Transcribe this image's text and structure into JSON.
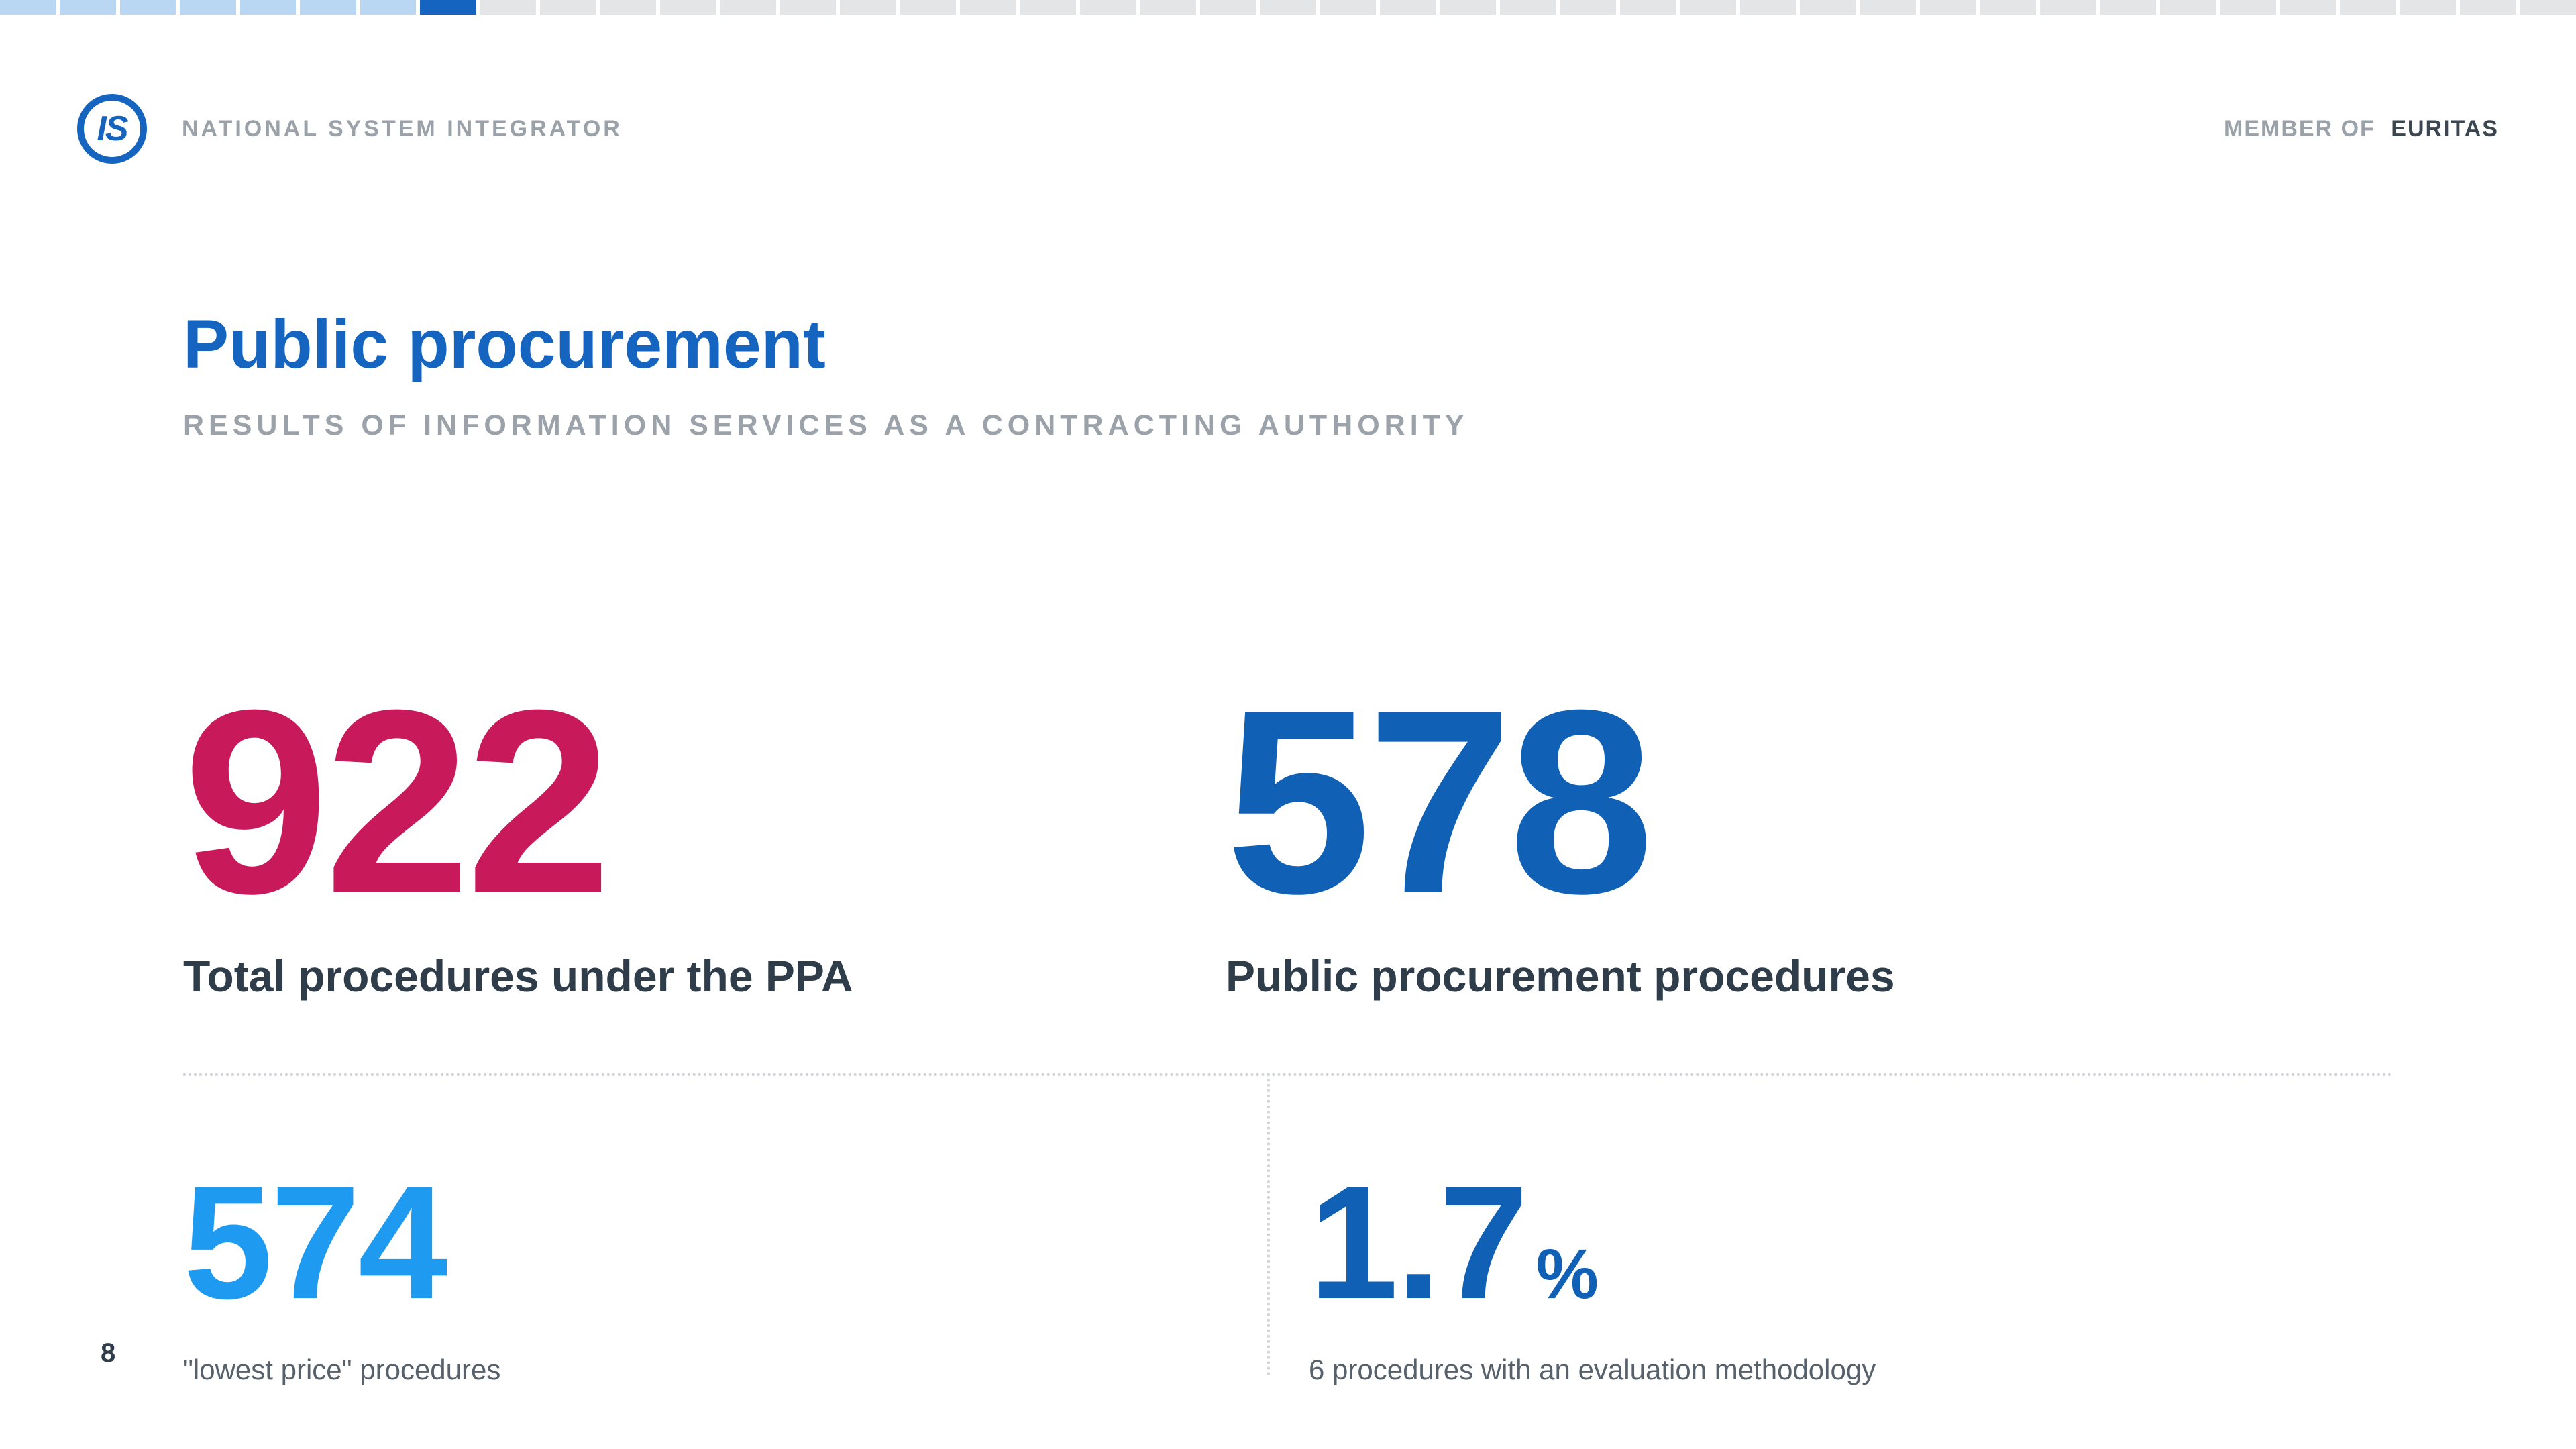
{
  "page": {
    "background": "#ffffff",
    "page_number": "8"
  },
  "progress_bar": {
    "total_segments": 43,
    "completed_segments": 7,
    "current_segment_index": 8,
    "colors": {
      "completed": "#b9d7f2",
      "current": "#1565c0",
      "upcoming": "#e4e5e6"
    }
  },
  "header": {
    "logo_text": "IS",
    "company": "NATIONAL SYSTEM INTEGRATOR",
    "membership_prefix": "MEMBER OF",
    "membership_org": "EURITAS"
  },
  "title_block": {
    "title": "Public procurement",
    "subtitle": "RESULTS OF INFORMATION SERVICES AS A CONTRACTING AUTHORITY"
  },
  "stats": [
    {
      "value": "922",
      "suffix": "",
      "label": "Total procedures under the PPA",
      "color": "#c8195b"
    },
    {
      "value": "578",
      "suffix": "",
      "label": "Public procurement procedures",
      "color": "#1060b5"
    },
    {
      "value": "574",
      "suffix": "",
      "label": "\"lowest price\" procedures",
      "color": "#1e9bf0"
    },
    {
      "value": "1.7",
      "suffix": "%",
      "label": "6 procedures with an evaluation methodology",
      "color": "#1060b5"
    }
  ]
}
